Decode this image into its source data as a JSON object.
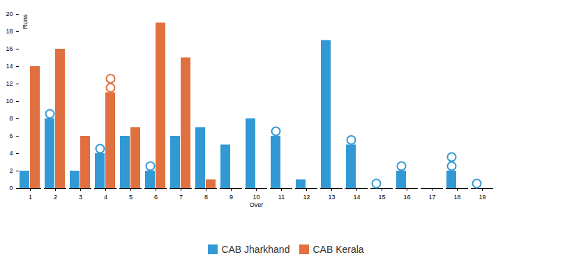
{
  "chart_data": {
    "type": "bar",
    "x_label": "Over",
    "y_label": "Runs",
    "categories": [
      1,
      2,
      3,
      4,
      5,
      6,
      7,
      8,
      9,
      10,
      11,
      12,
      13,
      14,
      15,
      16,
      17,
      18,
      19
    ],
    "series": [
      {
        "name": "CAB Jharkhand",
        "color": "#3399d4",
        "values": [
          2,
          8,
          2,
          4,
          6,
          2,
          6,
          7,
          5,
          8,
          6,
          1,
          17,
          5,
          0,
          2,
          0,
          2,
          0
        ],
        "wickets": [
          0,
          1,
          0,
          1,
          0,
          1,
          0,
          0,
          0,
          0,
          1,
          0,
          0,
          1,
          1,
          1,
          0,
          2,
          1
        ]
      },
      {
        "name": "CAB Kerala",
        "color": "#e0703f",
        "values": [
          14,
          16,
          6,
          11,
          7,
          19,
          15,
          1,
          null,
          null,
          null,
          null,
          null,
          null,
          null,
          null,
          null,
          null,
          null
        ],
        "wickets": [
          0,
          0,
          0,
          2,
          0,
          0,
          0,
          0,
          null,
          null,
          null,
          null,
          null,
          null,
          null,
          null,
          null,
          null,
          null
        ]
      }
    ],
    "ylim": [
      0,
      20
    ],
    "yticks": [
      0,
      2,
      4,
      6,
      8,
      10,
      12,
      14,
      16,
      18,
      20
    ],
    "legend": "bottom"
  }
}
